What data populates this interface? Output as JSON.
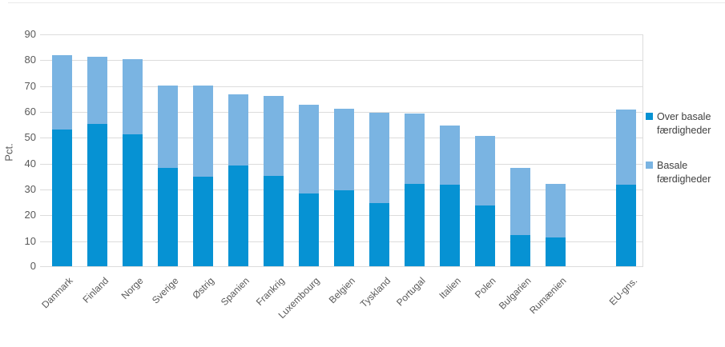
{
  "chart_data": {
    "type": "bar",
    "stacked": true,
    "title": "",
    "ylabel": "Pct.",
    "xlabel": "",
    "ylim": [
      0,
      90
    ],
    "ytick_step": 10,
    "yticks": [
      0,
      10,
      20,
      30,
      40,
      50,
      60,
      70,
      80,
      90
    ],
    "grid": true,
    "legend_position": "right",
    "categories": [
      "Danmark",
      "Finland",
      "Norge",
      "Sverige",
      "Østrig",
      "Spanien",
      "Frankrig",
      "Luxembourg",
      "Belgien",
      "Tyskland",
      "Portugal",
      "Italien",
      "Polen",
      "Bulgarien",
      "Rumænien",
      "EU-gns."
    ],
    "gap_before_last_category": true,
    "series": [
      {
        "name": "Over basale færdigheder",
        "color": "#0692d3",
        "values": [
          53,
          55,
          51,
          38,
          34.5,
          39,
          35,
          28,
          29.5,
          24.5,
          32,
          31.5,
          23.5,
          12,
          11,
          31.5
        ]
      },
      {
        "name": "Basale færdigheder",
        "color": "#7ab4e2",
        "values": [
          28.5,
          26,
          29,
          32,
          35.5,
          27.5,
          31,
          34.5,
          31.5,
          35,
          27,
          23,
          27,
          26,
          21,
          29
        ]
      }
    ],
    "totals": [
      81.5,
      81,
      80,
      70,
      70,
      66.5,
      66,
      62.5,
      61,
      59.5,
      59,
      54.5,
      50.5,
      38,
      32,
      60.5
    ]
  },
  "axis": {
    "y_unit_label": "Pct."
  },
  "legend": {
    "items": [
      {
        "label": "Over basale færdigheder",
        "color": "#0692d3"
      },
      {
        "label": "Basale færdigheder",
        "color": "#7ab4e2"
      }
    ]
  },
  "colors": {
    "over_basale": "#0692d3",
    "basale": "#7ab4e2",
    "gridline": "#dcdcdc",
    "axis_text": "#595959",
    "legend_text": "#404040"
  }
}
